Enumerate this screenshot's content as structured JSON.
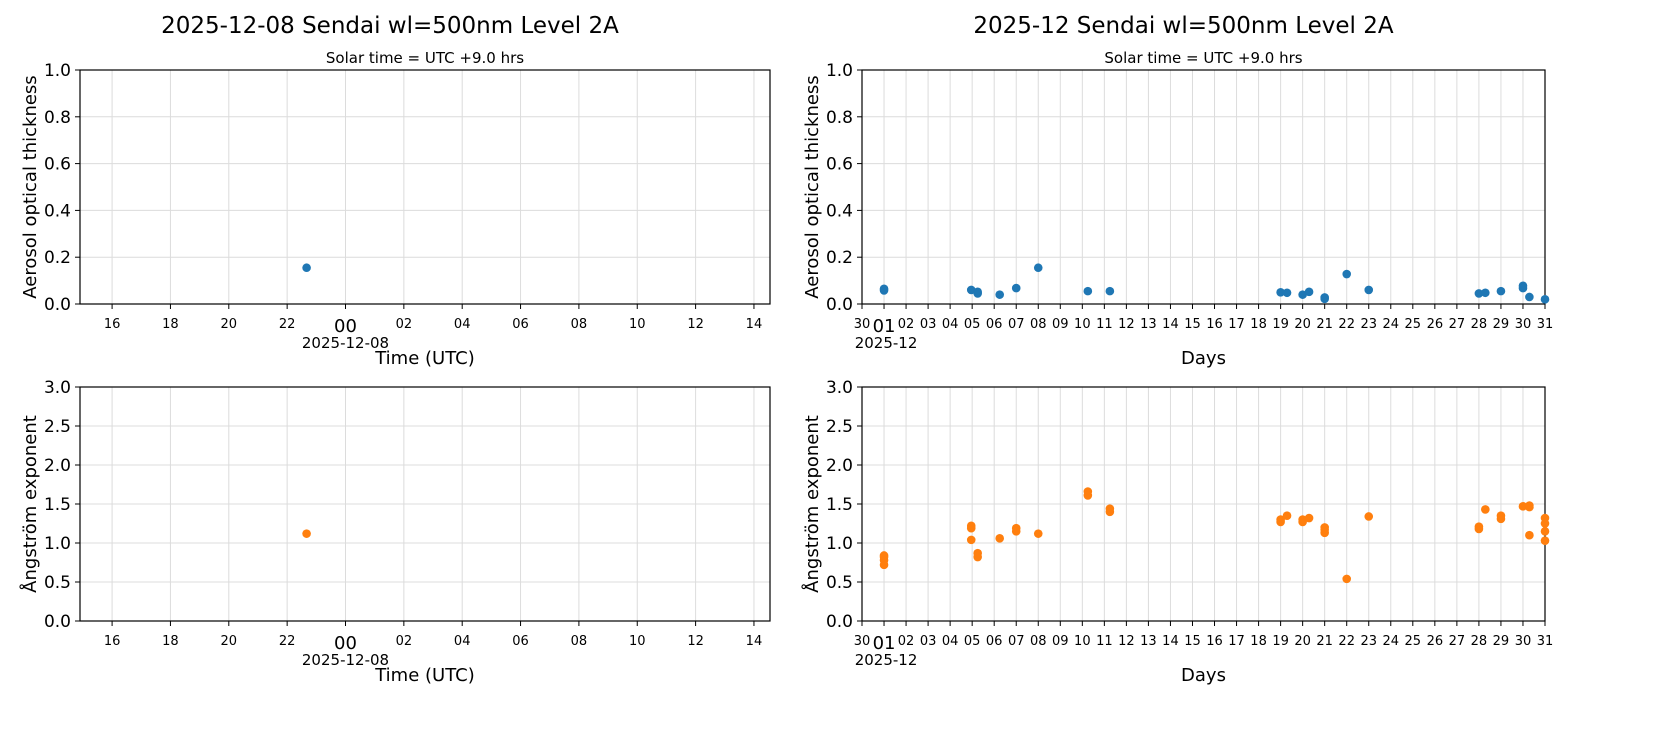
{
  "chart_data": [
    {
      "type": "scatter",
      "title": "2025-12-08  Sendai  wl=500nm  Level 2A",
      "subtitle": "Solar time = UTC +9.0 hrs",
      "xlabel": "Time (UTC)",
      "ylabel": "Aerosol optical thickness",
      "xlim": [
        "2025-12-07 14:54",
        "2025-12-08 14:33"
      ],
      "ylim": [
        0,
        1.0
      ],
      "xticks": [
        {
          "t": "2025-12-07 16:00",
          "label": "16"
        },
        {
          "t": "2025-12-07 18:00",
          "label": "18"
        },
        {
          "t": "2025-12-07 20:00",
          "label": "20"
        },
        {
          "t": "2025-12-07 22:00",
          "label": "22"
        },
        {
          "t": "2025-12-08 00:00",
          "label": "00",
          "major": true
        },
        {
          "t": "2025-12-08 02:00",
          "label": "02"
        },
        {
          "t": "2025-12-08 04:00",
          "label": "04"
        },
        {
          "t": "2025-12-08 06:00",
          "label": "06"
        },
        {
          "t": "2025-12-08 08:00",
          "label": "08"
        },
        {
          "t": "2025-12-08 10:00",
          "label": "10"
        },
        {
          "t": "2025-12-08 12:00",
          "label": "12"
        },
        {
          "t": "2025-12-08 14:00",
          "label": "14"
        }
      ],
      "xoffset_label": "2025-12-08",
      "yticks": [
        "0.0",
        "0.2",
        "0.4",
        "0.6",
        "0.8",
        "1.0"
      ],
      "grid": true,
      "color": "#1f77b4",
      "points": [
        {
          "x": "2025-12-07 22:40",
          "y": 0.155
        }
      ]
    },
    {
      "type": "scatter",
      "title": "2025-12  Sendai  wl=500nm  Level 2A",
      "subtitle": "Solar time = UTC +9.0 hrs",
      "xlabel": "Days",
      "ylabel": "Aerosol optical thickness",
      "xlim": [
        "2025-11-30 00:00",
        "2025-12-31 00:00"
      ],
      "ylim": [
        0,
        1.0
      ],
      "xticks_days": [
        "30",
        "01",
        "02",
        "03",
        "04",
        "05",
        "06",
        "07",
        "08",
        "09",
        "10",
        "11",
        "12",
        "13",
        "14",
        "15",
        "16",
        "17",
        "18",
        "19",
        "20",
        "21",
        "22",
        "23",
        "24",
        "25",
        "26",
        "27",
        "28",
        "29",
        "30",
        "31"
      ],
      "xoffset_label": "2025-12",
      "yticks": [
        "0.0",
        "0.2",
        "0.4",
        "0.6",
        "0.8",
        "1.0"
      ],
      "grid": true,
      "color": "#1f77b4",
      "points": [
        {
          "x": "2025-12-01 00:00",
          "y": 0.058
        },
        {
          "x": "2025-12-01 00:00",
          "y": 0.065
        },
        {
          "x": "2025-12-04 23:00",
          "y": 0.06
        },
        {
          "x": "2025-12-05 06:00",
          "y": 0.052
        },
        {
          "x": "2025-12-05 06:00",
          "y": 0.045
        },
        {
          "x": "2025-12-06 06:00",
          "y": 0.04
        },
        {
          "x": "2025-12-07 00:00",
          "y": 0.068
        },
        {
          "x": "2025-12-08 00:00",
          "y": 0.155
        },
        {
          "x": "2025-12-10 06:00",
          "y": 0.055
        },
        {
          "x": "2025-12-11 06:00",
          "y": 0.055
        },
        {
          "x": "2025-12-19 00:00",
          "y": 0.05
        },
        {
          "x": "2025-12-19 07:00",
          "y": 0.048
        },
        {
          "x": "2025-12-20 00:00",
          "y": 0.04
        },
        {
          "x": "2025-12-20 07:00",
          "y": 0.052
        },
        {
          "x": "2025-12-21 00:00",
          "y": 0.022
        },
        {
          "x": "2025-12-21 00:00",
          "y": 0.028
        },
        {
          "x": "2025-12-22 00:00",
          "y": 0.128
        },
        {
          "x": "2025-12-23 00:00",
          "y": 0.06
        },
        {
          "x": "2025-12-28 00:00",
          "y": 0.045
        },
        {
          "x": "2025-12-28 07:00",
          "y": 0.048
        },
        {
          "x": "2025-12-29 00:00",
          "y": 0.055
        },
        {
          "x": "2025-12-30 00:00",
          "y": 0.078
        },
        {
          "x": "2025-12-30 00:00",
          "y": 0.068
        },
        {
          "x": "2025-12-30 07:00",
          "y": 0.03
        },
        {
          "x": "2025-12-31 00:00",
          "y": 0.02
        }
      ]
    },
    {
      "type": "scatter",
      "xlabel": "Time (UTC)",
      "ylabel": "Ångström exponent",
      "xlim": [
        "2025-12-07 14:54",
        "2025-12-08 14:33"
      ],
      "ylim": [
        0,
        3.0
      ],
      "xticks": [
        {
          "t": "2025-12-07 16:00",
          "label": "16"
        },
        {
          "t": "2025-12-07 18:00",
          "label": "18"
        },
        {
          "t": "2025-12-07 20:00",
          "label": "20"
        },
        {
          "t": "2025-12-07 22:00",
          "label": "22"
        },
        {
          "t": "2025-12-08 00:00",
          "label": "00",
          "major": true
        },
        {
          "t": "2025-12-08 02:00",
          "label": "02"
        },
        {
          "t": "2025-12-08 04:00",
          "label": "04"
        },
        {
          "t": "2025-12-08 06:00",
          "label": "06"
        },
        {
          "t": "2025-12-08 08:00",
          "label": "08"
        },
        {
          "t": "2025-12-08 10:00",
          "label": "10"
        },
        {
          "t": "2025-12-08 12:00",
          "label": "12"
        },
        {
          "t": "2025-12-08 14:00",
          "label": "14"
        }
      ],
      "xoffset_label": "2025-12-08",
      "yticks": [
        "0.0",
        "0.5",
        "1.0",
        "1.5",
        "2.0",
        "2.5",
        "3.0"
      ],
      "grid": true,
      "color": "#ff7f0e",
      "points": [
        {
          "x": "2025-12-07 22:40",
          "y": 1.12
        }
      ]
    },
    {
      "type": "scatter",
      "xlabel": "Days",
      "ylabel": "Ångström exponent",
      "xlim": [
        "2025-11-30 00:00",
        "2025-12-31 00:00"
      ],
      "ylim": [
        0,
        3.0
      ],
      "xticks_days": [
        "30",
        "01",
        "02",
        "03",
        "04",
        "05",
        "06",
        "07",
        "08",
        "09",
        "10",
        "11",
        "12",
        "13",
        "14",
        "15",
        "16",
        "17",
        "18",
        "19",
        "20",
        "21",
        "22",
        "23",
        "24",
        "25",
        "26",
        "27",
        "28",
        "29",
        "30",
        "31"
      ],
      "xoffset_label": "2025-12",
      "yticks": [
        "0.0",
        "0.5",
        "1.0",
        "1.5",
        "2.0",
        "2.5",
        "3.0"
      ],
      "grid": true,
      "color": "#ff7f0e",
      "points": [
        {
          "x": "2025-12-01 00:00",
          "y": 0.72
        },
        {
          "x": "2025-12-01 00:00",
          "y": 0.78
        },
        {
          "x": "2025-12-01 00:00",
          "y": 0.82
        },
        {
          "x": "2025-12-01 00:00",
          "y": 0.84
        },
        {
          "x": "2025-12-04 23:00",
          "y": 1.19
        },
        {
          "x": "2025-12-04 23:00",
          "y": 1.22
        },
        {
          "x": "2025-12-04 23:00",
          "y": 1.04
        },
        {
          "x": "2025-12-05 06:00",
          "y": 0.82
        },
        {
          "x": "2025-12-05 06:00",
          "y": 0.87
        },
        {
          "x": "2025-12-06 06:00",
          "y": 1.06
        },
        {
          "x": "2025-12-07 00:00",
          "y": 1.15
        },
        {
          "x": "2025-12-07 00:00",
          "y": 1.19
        },
        {
          "x": "2025-12-08 00:00",
          "y": 1.12
        },
        {
          "x": "2025-12-10 06:00",
          "y": 1.61
        },
        {
          "x": "2025-12-10 06:00",
          "y": 1.66
        },
        {
          "x": "2025-12-11 06:00",
          "y": 1.4
        },
        {
          "x": "2025-12-11 06:00",
          "y": 1.44
        },
        {
          "x": "2025-12-19 00:00",
          "y": 1.27
        },
        {
          "x": "2025-12-19 00:00",
          "y": 1.3
        },
        {
          "x": "2025-12-19 07:00",
          "y": 1.35
        },
        {
          "x": "2025-12-20 00:00",
          "y": 1.27
        },
        {
          "x": "2025-12-20 00:00",
          "y": 1.3
        },
        {
          "x": "2025-12-20 07:00",
          "y": 1.32
        },
        {
          "x": "2025-12-21 00:00",
          "y": 1.13
        },
        {
          "x": "2025-12-21 00:00",
          "y": 1.17
        },
        {
          "x": "2025-12-21 00:00",
          "y": 1.2
        },
        {
          "x": "2025-12-22 00:00",
          "y": 0.54
        },
        {
          "x": "2025-12-23 00:00",
          "y": 1.34
        },
        {
          "x": "2025-12-28 00:00",
          "y": 1.18
        },
        {
          "x": "2025-12-28 00:00",
          "y": 1.21
        },
        {
          "x": "2025-12-28 07:00",
          "y": 1.43
        },
        {
          "x": "2025-12-29 00:00",
          "y": 1.31
        },
        {
          "x": "2025-12-29 00:00",
          "y": 1.35
        },
        {
          "x": "2025-12-30 00:00",
          "y": 1.47
        },
        {
          "x": "2025-12-30 07:00",
          "y": 1.46
        },
        {
          "x": "2025-12-30 07:00",
          "y": 1.48
        },
        {
          "x": "2025-12-30 07:00",
          "y": 1.1
        },
        {
          "x": "2025-12-31 00:00",
          "y": 1.03
        },
        {
          "x": "2025-12-31 00:00",
          "y": 1.15
        },
        {
          "x": "2025-12-31 00:00",
          "y": 1.25
        },
        {
          "x": "2025-12-31 00:00",
          "y": 1.32
        }
      ]
    }
  ]
}
